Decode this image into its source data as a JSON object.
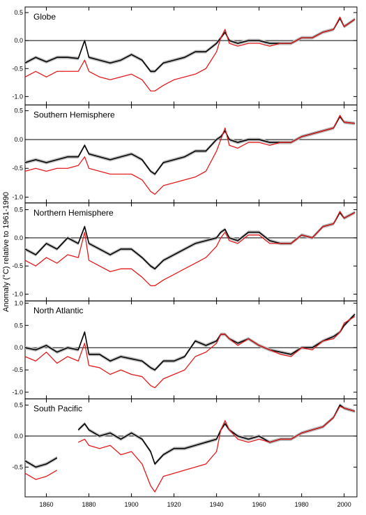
{
  "colors": {
    "black_series": "#000000",
    "red_series": "#e41a1c",
    "uncertainty_band": "#bdbdbd"
  },
  "chart_data": {
    "type": "line",
    "ylabel": "Anomaly (°C) relative to 1961-1990",
    "xlim": [
      1850,
      2006
    ],
    "x_ticks": [
      1860,
      1880,
      1900,
      1920,
      1940,
      1960,
      1980,
      2000
    ],
    "x_tick_labels": [
      "1860",
      "1880",
      "1900",
      "1920",
      "1940",
      "1960",
      "1980",
      "2000"
    ],
    "legend": "none",
    "grid": false,
    "panels": [
      {
        "title": "Globe",
        "ylim": [
          -1.15,
          0.6
        ],
        "y_ticks": [
          0.5,
          0,
          -0.5,
          -1
        ],
        "y_tick_labels": [
          "0.5",
          "0.0",
          "-0.5",
          "-1.0"
        ],
        "series": [
          {
            "color": "black",
            "x": [
              1850,
              1855,
              1860,
              1865,
              1870,
              1875,
              1878,
              1880,
              1885,
              1890,
              1895,
              1900,
              1905,
              1909,
              1911,
              1915,
              1920,
              1925,
              1930,
              1935,
              1940,
              1942,
              1944,
              1946,
              1950,
              1955,
              1960,
              1965,
              1970,
              1975,
              1980,
              1985,
              1990,
              1995,
              1998,
              2000,
              2005
            ],
            "values": [
              -0.4,
              -0.3,
              -0.38,
              -0.3,
              -0.3,
              -0.32,
              0.0,
              -0.3,
              -0.35,
              -0.4,
              -0.35,
              -0.25,
              -0.35,
              -0.55,
              -0.55,
              -0.4,
              -0.35,
              -0.3,
              -0.2,
              -0.2,
              -0.05,
              0.05,
              0.15,
              0.0,
              -0.05,
              0.0,
              0.0,
              -0.05,
              -0.05,
              -0.05,
              0.05,
              0.05,
              0.15,
              0.2,
              0.4,
              0.25,
              0.38
            ]
          },
          {
            "color": "red",
            "x": [
              1850,
              1855,
              1860,
              1865,
              1870,
              1875,
              1878,
              1880,
              1885,
              1890,
              1895,
              1900,
              1905,
              1909,
              1911,
              1915,
              1920,
              1925,
              1930,
              1935,
              1940,
              1942,
              1944,
              1946,
              1950,
              1955,
              1960,
              1965,
              1970,
              1975,
              1980,
              1985,
              1990,
              1995,
              1998,
              2000,
              2005
            ],
            "values": [
              -0.65,
              -0.55,
              -0.65,
              -0.55,
              -0.55,
              -0.55,
              -0.35,
              -0.55,
              -0.65,
              -0.7,
              -0.65,
              -0.6,
              -0.7,
              -0.9,
              -0.9,
              -0.8,
              -0.7,
              -0.65,
              -0.6,
              -0.5,
              -0.2,
              0.05,
              0.2,
              -0.05,
              -0.1,
              -0.05,
              -0.05,
              -0.1,
              -0.05,
              -0.05,
              0.05,
              0.05,
              0.15,
              0.2,
              0.42,
              0.25,
              0.38
            ]
          }
        ]
      },
      {
        "title": "Southern Hemisphere",
        "ylim": [
          -1.1,
          0.6
        ],
        "y_ticks": [
          0.5,
          0,
          -0.5,
          -1
        ],
        "y_tick_labels": [
          "0.5",
          "0.0",
          "-0.5",
          "-1.0"
        ],
        "series": [
          {
            "color": "black",
            "x": [
              1850,
              1855,
              1860,
              1865,
              1870,
              1875,
              1878,
              1880,
              1885,
              1890,
              1895,
              1900,
              1905,
              1909,
              1911,
              1915,
              1920,
              1925,
              1930,
              1935,
              1940,
              1942,
              1944,
              1946,
              1950,
              1955,
              1960,
              1965,
              1970,
              1975,
              1980,
              1985,
              1990,
              1995,
              1998,
              2000,
              2005
            ],
            "values": [
              -0.4,
              -0.35,
              -0.4,
              -0.35,
              -0.3,
              -0.3,
              -0.1,
              -0.25,
              -0.3,
              -0.35,
              -0.3,
              -0.25,
              -0.35,
              -0.55,
              -0.6,
              -0.4,
              -0.35,
              -0.3,
              -0.2,
              -0.2,
              0.0,
              0.05,
              0.15,
              0.0,
              -0.05,
              0.0,
              0.0,
              -0.05,
              -0.05,
              -0.05,
              0.05,
              0.1,
              0.15,
              0.2,
              0.4,
              0.3,
              0.28
            ]
          },
          {
            "color": "red",
            "x": [
              1850,
              1855,
              1860,
              1865,
              1870,
              1875,
              1878,
              1880,
              1885,
              1890,
              1895,
              1900,
              1905,
              1909,
              1911,
              1915,
              1920,
              1925,
              1930,
              1935,
              1940,
              1942,
              1944,
              1946,
              1950,
              1955,
              1960,
              1965,
              1970,
              1975,
              1980,
              1985,
              1990,
              1995,
              1998,
              2000,
              2005
            ],
            "values": [
              -0.55,
              -0.5,
              -0.55,
              -0.5,
              -0.5,
              -0.45,
              -0.3,
              -0.5,
              -0.55,
              -0.6,
              -0.6,
              -0.6,
              -0.7,
              -0.9,
              -0.95,
              -0.8,
              -0.75,
              -0.7,
              -0.65,
              -0.55,
              -0.2,
              0.0,
              0.2,
              -0.1,
              -0.15,
              -0.05,
              -0.05,
              -0.1,
              -0.05,
              -0.05,
              0.05,
              0.1,
              0.15,
              0.2,
              0.42,
              0.3,
              0.28
            ]
          }
        ]
      },
      {
        "title": "Northern Hemisphere",
        "ylim": [
          -1.12,
          0.62
        ],
        "y_ticks": [
          0.5,
          0,
          -0.5,
          -1
        ],
        "y_tick_labels": [
          "0.5",
          "0.0",
          "-0.5",
          "-1.0"
        ],
        "series": [
          {
            "color": "black",
            "x": [
              1850,
              1855,
              1860,
              1865,
              1870,
              1875,
              1878,
              1880,
              1885,
              1890,
              1895,
              1900,
              1905,
              1909,
              1911,
              1915,
              1920,
              1925,
              1930,
              1935,
              1940,
              1942,
              1944,
              1946,
              1950,
              1955,
              1960,
              1965,
              1970,
              1975,
              1980,
              1985,
              1990,
              1995,
              1998,
              2000,
              2005
            ],
            "values": [
              -0.2,
              -0.3,
              -0.1,
              -0.2,
              0.0,
              -0.1,
              0.2,
              -0.1,
              -0.2,
              -0.3,
              -0.2,
              -0.2,
              -0.35,
              -0.5,
              -0.55,
              -0.4,
              -0.3,
              -0.2,
              -0.1,
              -0.05,
              0.0,
              0.1,
              0.15,
              0.0,
              -0.05,
              0.1,
              0.1,
              -0.05,
              -0.1,
              -0.1,
              0.05,
              0.0,
              0.2,
              0.25,
              0.45,
              0.35,
              0.45
            ]
          },
          {
            "color": "red",
            "x": [
              1850,
              1855,
              1860,
              1865,
              1870,
              1875,
              1878,
              1880,
              1885,
              1890,
              1895,
              1900,
              1905,
              1909,
              1911,
              1915,
              1920,
              1925,
              1930,
              1935,
              1940,
              1942,
              1944,
              1946,
              1950,
              1955,
              1960,
              1965,
              1970,
              1975,
              1980,
              1985,
              1990,
              1995,
              1998,
              2000,
              2005
            ],
            "values": [
              -0.4,
              -0.5,
              -0.35,
              -0.45,
              -0.3,
              -0.35,
              0.1,
              -0.4,
              -0.5,
              -0.6,
              -0.55,
              -0.55,
              -0.7,
              -0.85,
              -0.85,
              -0.75,
              -0.65,
              -0.55,
              -0.45,
              -0.35,
              -0.15,
              0.0,
              0.1,
              -0.05,
              -0.1,
              0.05,
              0.05,
              -0.1,
              -0.1,
              -0.1,
              0.05,
              0.0,
              0.2,
              0.25,
              0.47,
              0.35,
              0.45
            ]
          }
        ]
      },
      {
        "title": "North Atlantic",
        "ylim": [
          -1.15,
          1.05
        ],
        "y_ticks": [
          1,
          0.5,
          0,
          -0.5,
          -1
        ],
        "y_tick_labels": [
          "1.0",
          "0.5",
          "0.0",
          "-0.5",
          "-1.0"
        ],
        "series": [
          {
            "color": "black",
            "x": [
              1850,
              1855,
              1860,
              1865,
              1870,
              1875,
              1878,
              1880,
              1885,
              1890,
              1895,
              1900,
              1905,
              1909,
              1911,
              1915,
              1920,
              1925,
              1930,
              1935,
              1940,
              1942,
              1944,
              1946,
              1950,
              1955,
              1960,
              1965,
              1970,
              1975,
              1980,
              1985,
              1990,
              1995,
              1998,
              2000,
              2005
            ],
            "values": [
              0.0,
              -0.05,
              0.05,
              -0.1,
              0.0,
              -0.05,
              0.35,
              -0.15,
              -0.15,
              -0.3,
              -0.2,
              -0.25,
              -0.3,
              -0.45,
              -0.5,
              -0.3,
              -0.3,
              -0.2,
              0.15,
              0.05,
              0.15,
              0.3,
              0.3,
              0.2,
              0.1,
              0.2,
              0.05,
              -0.05,
              -0.1,
              -0.15,
              0.0,
              0.0,
              0.15,
              0.25,
              0.35,
              0.5,
              0.75
            ]
          },
          {
            "color": "red",
            "x": [
              1850,
              1855,
              1860,
              1865,
              1870,
              1875,
              1878,
              1880,
              1885,
              1890,
              1895,
              1900,
              1905,
              1909,
              1911,
              1915,
              1920,
              1925,
              1930,
              1935,
              1940,
              1942,
              1944,
              1946,
              1950,
              1955,
              1960,
              1965,
              1970,
              1975,
              1980,
              1985,
              1990,
              1995,
              1998,
              2000,
              2005
            ],
            "values": [
              -0.2,
              -0.3,
              -0.1,
              -0.35,
              -0.2,
              -0.3,
              0.1,
              -0.4,
              -0.45,
              -0.6,
              -0.5,
              -0.6,
              -0.65,
              -0.85,
              -0.9,
              -0.7,
              -0.6,
              -0.5,
              -0.2,
              -0.1,
              0.1,
              0.3,
              0.3,
              0.2,
              0.05,
              0.2,
              0.05,
              -0.05,
              -0.15,
              -0.2,
              0.0,
              -0.05,
              0.15,
              0.2,
              0.35,
              0.55,
              0.7
            ]
          }
        ]
      },
      {
        "title": "South Pacific",
        "ylim": [
          -0.98,
          0.6
        ],
        "y_ticks": [
          0.5,
          0,
          -0.5
        ],
        "y_tick_labels": [
          "0.5",
          "0.0",
          "-0.5"
        ],
        "series": [
          {
            "color": "black",
            "x": [
              1850,
              1855,
              1860,
              1865,
              1870,
              1875,
              1878,
              1880,
              1885,
              1890,
              1895,
              1900,
              1905,
              1909,
              1911,
              1915,
              1920,
              1925,
              1930,
              1935,
              1940,
              1942,
              1944,
              1946,
              1950,
              1955,
              1960,
              1965,
              1970,
              1975,
              1980,
              1985,
              1990,
              1995,
              1998,
              2000,
              2005
            ],
            "values": [
              -0.4,
              -0.5,
              -0.45,
              -0.35,
              null,
              0.1,
              0.2,
              0.1,
              0.0,
              0.05,
              -0.05,
              0.05,
              -0.05,
              -0.25,
              -0.45,
              -0.3,
              -0.2,
              -0.2,
              -0.15,
              -0.1,
              -0.05,
              0.1,
              0.2,
              0.1,
              0.0,
              -0.05,
              0.0,
              -0.1,
              -0.05,
              -0.05,
              0.05,
              0.1,
              0.15,
              0.3,
              0.5,
              0.45,
              0.4
            ]
          },
          {
            "color": "red",
            "x": [
              1850,
              1855,
              1860,
              1865,
              1870,
              1875,
              1878,
              1880,
              1885,
              1890,
              1895,
              1900,
              1905,
              1909,
              1911,
              1915,
              1920,
              1925,
              1930,
              1935,
              1940,
              1942,
              1944,
              1946,
              1950,
              1955,
              1960,
              1965,
              1970,
              1975,
              1980,
              1985,
              1990,
              1995,
              1998,
              2000,
              2005
            ],
            "values": [
              -0.6,
              -0.7,
              -0.65,
              -0.55,
              null,
              -0.1,
              -0.05,
              -0.15,
              -0.2,
              -0.15,
              -0.3,
              -0.25,
              -0.45,
              -0.8,
              -0.9,
              -0.65,
              -0.6,
              -0.55,
              -0.5,
              -0.45,
              -0.25,
              0.1,
              0.25,
              0.1,
              -0.05,
              -0.1,
              -0.05,
              -0.1,
              -0.05,
              -0.05,
              0.05,
              0.1,
              0.15,
              0.3,
              0.48,
              0.45,
              0.4
            ]
          }
        ]
      }
    ]
  }
}
